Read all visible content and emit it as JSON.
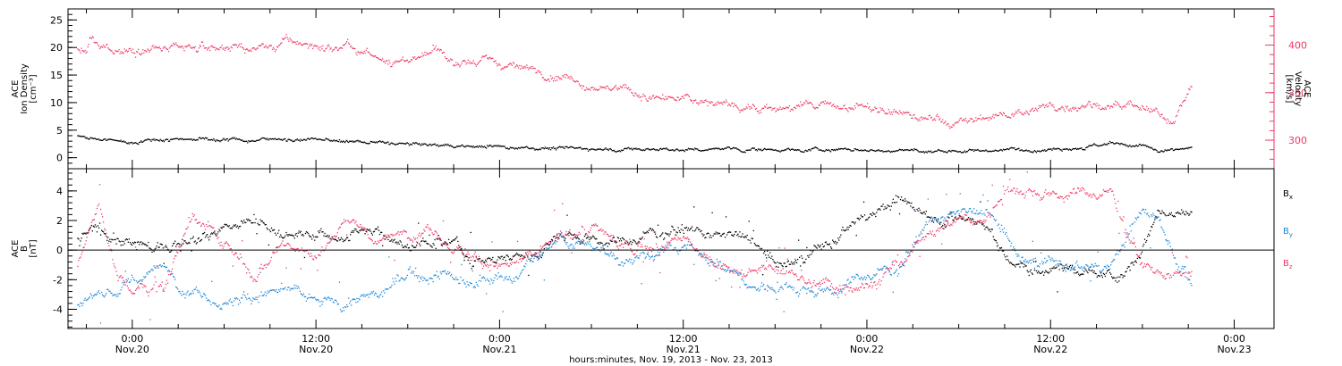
{
  "chart_data": [
    {
      "type": "scatter",
      "name": "plasma-panel",
      "y_left": {
        "label_lines": [
          "ACE",
          "Ion Density",
          "[cm⁻³]"
        ],
        "ylim": [
          -2,
          27
        ],
        "ticks": [
          0,
          5,
          10,
          15,
          20,
          25
        ],
        "color": "#000000"
      },
      "y_right": {
        "label_lines": [
          "ACE",
          "Velocity",
          "[km/s]"
        ],
        "ylim": [
          270,
          438
        ],
        "ticks": [
          300,
          350,
          400
        ],
        "color": "#ee3a66"
      },
      "series": [
        {
          "axis": "right",
          "color": "#ee3a66",
          "anchors": [
            [
              -3.6,
              395
            ],
            [
              -3,
              392
            ],
            [
              -2.8,
              405
            ],
            [
              -2.2,
              398
            ],
            [
              0,
              395
            ],
            [
              3,
              395
            ],
            [
              6,
              400
            ],
            [
              8,
              395
            ],
            [
              10,
              405
            ],
            [
              12,
              398
            ],
            [
              14,
              395
            ],
            [
              16,
              385
            ],
            [
              18,
              385
            ],
            [
              20,
              390
            ],
            [
              22,
              385
            ],
            [
              24,
              380
            ],
            [
              26,
              375
            ],
            [
              28,
              370
            ],
            [
              30,
              360
            ],
            [
              32,
              353
            ],
            [
              34,
              345
            ],
            [
              36,
              342
            ],
            [
              38,
              340
            ],
            [
              40,
              337
            ],
            [
              42,
              335
            ],
            [
              44,
              335
            ],
            [
              46,
              338
            ],
            [
              48,
              333
            ],
            [
              50,
              328
            ],
            [
              52,
              322
            ],
            [
              54,
              318
            ],
            [
              56,
              325
            ],
            [
              58,
              330
            ],
            [
              60,
              336
            ],
            [
              62,
              340
            ],
            [
              64,
              338
            ],
            [
              66,
              330
            ],
            [
              68,
              322
            ],
            [
              69.2,
              358
            ]
          ]
        },
        {
          "axis": "left",
          "color": "#000000",
          "anchors": [
            [
              -3.6,
              4
            ],
            [
              -2,
              3.2
            ],
            [
              0,
              3
            ],
            [
              2,
              3.5
            ],
            [
              4,
              3.6
            ],
            [
              6,
              3.4
            ],
            [
              8,
              3.4
            ],
            [
              10,
              3.5
            ],
            [
              12,
              3.3
            ],
            [
              14,
              3.0
            ],
            [
              16,
              2.8
            ],
            [
              18,
              2.5
            ],
            [
              20,
              2.3
            ],
            [
              22,
              2.2
            ],
            [
              24,
              2.2
            ],
            [
              26,
              2.0
            ],
            [
              28,
              1.8
            ],
            [
              30,
              1.8
            ],
            [
              32,
              1.6
            ],
            [
              34,
              1.6
            ],
            [
              36,
              1.5
            ],
            [
              38,
              1.6
            ],
            [
              40,
              1.6
            ],
            [
              42,
              1.6
            ],
            [
              44,
              1.5
            ],
            [
              46,
              1.6
            ],
            [
              48,
              1.4
            ],
            [
              50,
              1.4
            ],
            [
              52,
              1.2
            ],
            [
              54,
              1.4
            ],
            [
              56,
              1.5
            ],
            [
              58,
              1.6
            ],
            [
              60,
              1.9
            ],
            [
              62,
              2.2
            ],
            [
              64,
              2.5
            ],
            [
              66,
              2.2
            ],
            [
              67,
              1
            ],
            [
              69.2,
              1.8
            ]
          ]
        }
      ]
    },
    {
      "type": "scatter",
      "name": "magnetic-panel",
      "y_left": {
        "label_lines": [
          "ACE",
          "B",
          "[nT]"
        ],
        "ylim": [
          -5.3,
          5.5
        ],
        "ticks": [
          -4,
          -2,
          0,
          2,
          4
        ],
        "color": "#000000"
      },
      "zero_line": true,
      "series": [
        {
          "name": "Bₓ",
          "color": "#000000",
          "anchors": [
            [
              -3.6,
              0.8
            ],
            [
              -2,
              1.5
            ],
            [
              0,
              0.5
            ],
            [
              2,
              0.2
            ],
            [
              4,
              1.0
            ],
            [
              6,
              1.5
            ],
            [
              8,
              2.0
            ],
            [
              10,
              1.0
            ],
            [
              12,
              1.2
            ],
            [
              14,
              0.8
            ],
            [
              16,
              1.4
            ],
            [
              18,
              0.5
            ],
            [
              20,
              0.7
            ],
            [
              22,
              -0.3
            ],
            [
              24,
              -0.5
            ],
            [
              26,
              -0.6
            ],
            [
              28,
              1.2
            ],
            [
              30,
              1.0
            ],
            [
              32,
              0.6
            ],
            [
              34,
              1.4
            ],
            [
              36,
              1.6
            ],
            [
              38,
              1.0
            ],
            [
              40,
              0.8
            ],
            [
              42,
              -1.0
            ],
            [
              44,
              -0.5
            ],
            [
              46,
              0.5
            ],
            [
              48,
              2.5
            ],
            [
              50,
              3.2
            ],
            [
              52,
              2.5
            ],
            [
              54,
              2.0
            ],
            [
              56,
              1.8
            ],
            [
              57,
              -0.5
            ],
            [
              58,
              -1.5
            ],
            [
              60,
              -1.0
            ],
            [
              62,
              -1.3
            ],
            [
              64,
              -1.8
            ],
            [
              66,
              0
            ],
            [
              67,
              3.0
            ],
            [
              69.2,
              2.6
            ]
          ]
        },
        {
          "name": "B_y",
          "color": "#1e88d8",
          "anchors": [
            [
              -3.6,
              -3.5
            ],
            [
              -2,
              -3.0
            ],
            [
              0,
              -2.0
            ],
            [
              2,
              -1.0
            ],
            [
              4,
              -3.0
            ],
            [
              6,
              -3.5
            ],
            [
              8,
              -3.0
            ],
            [
              10,
              -2.5
            ],
            [
              12,
              -3.5
            ],
            [
              14,
              -3.5
            ],
            [
              16,
              -3.0
            ],
            [
              18,
              -1.5
            ],
            [
              20,
              -1.5
            ],
            [
              22,
              -2.0
            ],
            [
              24,
              -2.0
            ],
            [
              26,
              -1.0
            ],
            [
              28,
              0.8
            ],
            [
              30,
              0
            ],
            [
              32,
              -0.5
            ],
            [
              34,
              -0.2
            ],
            [
              36,
              0.3
            ],
            [
              38,
              -1.0
            ],
            [
              40,
              -2.0
            ],
            [
              42,
              -2.5
            ],
            [
              44,
              -2.5
            ],
            [
              46,
              -2.5
            ],
            [
              48,
              -1.5
            ],
            [
              50,
              -1.0
            ],
            [
              52,
              2.0
            ],
            [
              54,
              2.5
            ],
            [
              56,
              2.3
            ],
            [
              58,
              -0.5
            ],
            [
              60,
              -1.0
            ],
            [
              62,
              -1.5
            ],
            [
              64,
              -0.8
            ],
            [
              66,
              2.5
            ],
            [
              67,
              2.3
            ],
            [
              69.2,
              -2.5
            ]
          ]
        },
        {
          "name": "B_z",
          "color": "#ee3a66",
          "anchors": [
            [
              -3.6,
              -1
            ],
            [
              -2.2,
              3.2
            ],
            [
              -1,
              -1.5
            ],
            [
              0,
              -3.0
            ],
            [
              2,
              -2.5
            ],
            [
              4,
              2.5
            ],
            [
              6,
              0.5
            ],
            [
              8,
              -2.0
            ],
            [
              10,
              1.0
            ],
            [
              12,
              -0.5
            ],
            [
              14,
              2.0
            ],
            [
              16,
              0.5
            ],
            [
              18,
              1.5
            ],
            [
              20,
              1.0
            ],
            [
              22,
              -0.5
            ],
            [
              24,
              -1.0
            ],
            [
              26,
              -0.5
            ],
            [
              28,
              1.0
            ],
            [
              30,
              1.5
            ],
            [
              32,
              0.5
            ],
            [
              34,
              0.5
            ],
            [
              36,
              0.8
            ],
            [
              38,
              -1.0
            ],
            [
              40,
              -1.5
            ],
            [
              42,
              -1.0
            ],
            [
              44,
              -2.0
            ],
            [
              46,
              -2.5
            ],
            [
              48,
              -2.2
            ],
            [
              50,
              -1.0
            ],
            [
              52,
              1.0
            ],
            [
              54,
              2.0
            ],
            [
              56,
              2.5
            ],
            [
              57,
              4.2
            ],
            [
              60,
              4.0
            ],
            [
              64,
              4.0
            ],
            [
              66,
              -1.0
            ],
            [
              67,
              -1.5
            ],
            [
              69.2,
              -1.8
            ]
          ]
        }
      ]
    }
  ],
  "x_axis": {
    "xlim": [
      -4.2,
      74.6
    ],
    "ticks": [
      {
        "x": 0,
        "time": "0:00",
        "date": "Nov.20"
      },
      {
        "x": 12,
        "time": "12:00",
        "date": "Nov.20"
      },
      {
        "x": 24,
        "time": "0:00",
        "date": "Nov.21"
      },
      {
        "x": 36,
        "time": "12:00",
        "date": "Nov.21"
      },
      {
        "x": 48,
        "time": "0:00",
        "date": "Nov.22"
      },
      {
        "x": 60,
        "time": "12:00",
        "date": "Nov.22"
      },
      {
        "x": 72,
        "time": "0:00",
        "date": "Nov.23"
      }
    ],
    "label": "hours:minutes, Nov. 19, 2013 - Nov. 23, 2013"
  },
  "legend": {
    "placement": "right",
    "entries": [
      {
        "base": "B",
        "sub": "x",
        "color": "#000000"
      },
      {
        "base": "B",
        "sub": "y",
        "color": "#1e88d8"
      },
      {
        "base": "B",
        "sub": "z",
        "color": "#ee3a66"
      }
    ]
  }
}
